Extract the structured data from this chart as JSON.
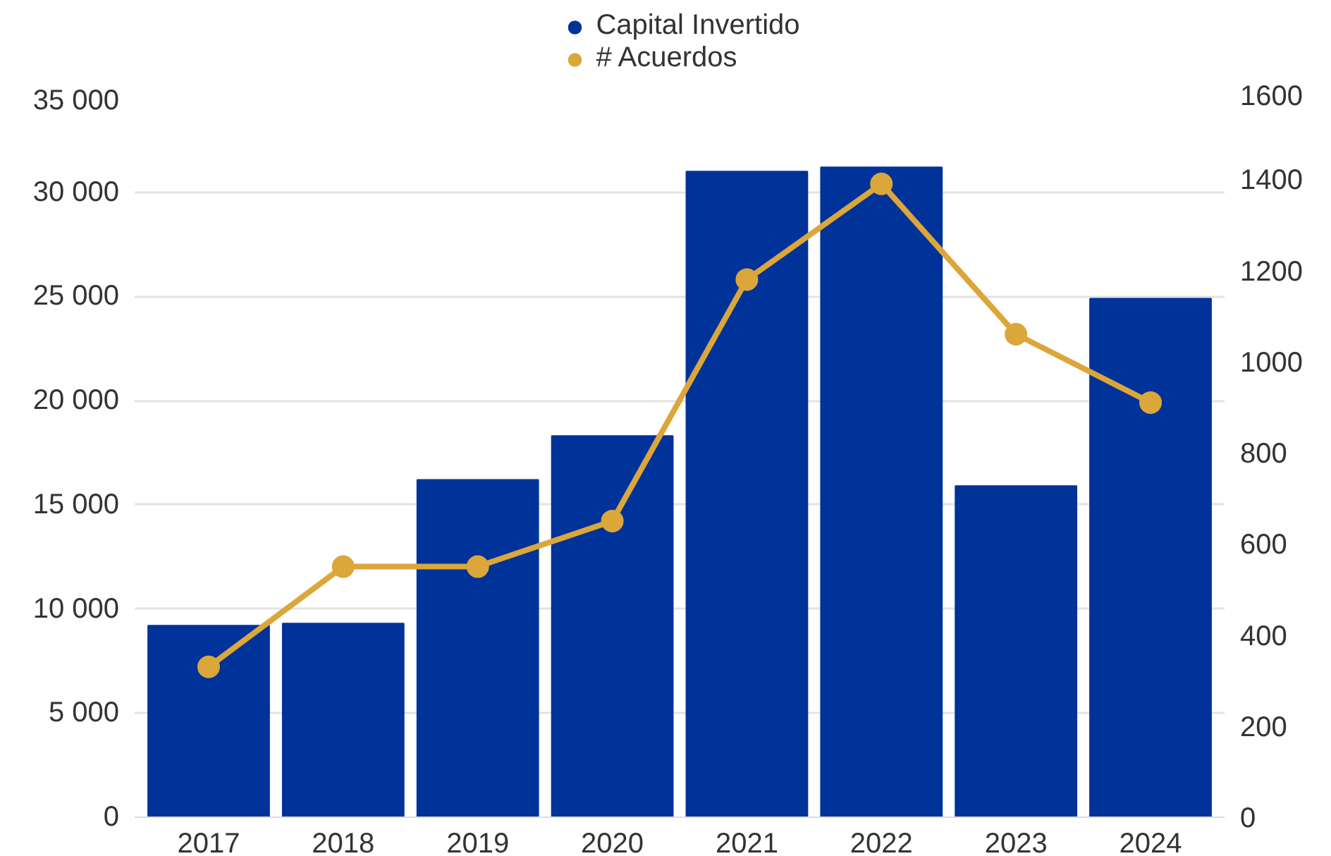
{
  "chart_data": {
    "type": "bar",
    "categories": [
      "2017",
      "2018",
      "2019",
      "2020",
      "2021",
      "2022",
      "2023",
      "2024"
    ],
    "series": [
      {
        "name": "Capital Invertido",
        "color": "#003399",
        "values": [
          9200,
          9300,
          16200,
          18300,
          31000,
          31200,
          15900,
          24900
        ]
      },
      {
        "name": "# Acuerdos",
        "type": "line",
        "axis": "y2",
        "color": "#dba63a",
        "values": [
          330,
          550,
          550,
          650,
          1180,
          1390,
          1060,
          910
        ]
      }
    ],
    "ylim": [
      0,
      35000
    ],
    "yticks": [
      {
        "value": 0,
        "label": "0"
      },
      {
        "value": 5000,
        "label": "5 000"
      },
      {
        "value": 10000,
        "label": "10 000"
      },
      {
        "value": 15000,
        "label": "15 000"
      },
      {
        "value": 20000,
        "label": "20 000"
      },
      {
        "value": 25000,
        "label": "25 000"
      },
      {
        "value": 30000,
        "label": "30 000"
      },
      {
        "value": 35000,
        "label": "35 000"
      }
    ],
    "y2lim": [
      0,
      1600
    ],
    "y2ticks": [
      0,
      200,
      400,
      600,
      800,
      1000,
      1200,
      1400,
      1600
    ],
    "grid": "y",
    "legend": "top",
    "marker": "circle",
    "line_style": "solid"
  }
}
